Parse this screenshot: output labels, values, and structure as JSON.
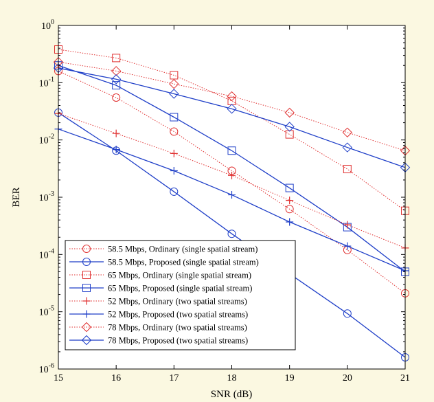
{
  "chart_data": {
    "type": "line",
    "xlabel": "SNR (dB)",
    "ylabel": "BER",
    "xlim": [
      15,
      21
    ],
    "ylim": [
      1e-06,
      1
    ],
    "yscale": "log",
    "grid": false,
    "legend_position": "bottom-left",
    "x_ticks": [
      "15",
      "16",
      "17",
      "18",
      "19",
      "20",
      "21"
    ],
    "y_ticks": [
      {
        "base": "10",
        "exp": "0",
        "value": 1
      },
      {
        "base": "10",
        "exp": "-1",
        "value": 0.1
      },
      {
        "base": "10",
        "exp": "-2",
        "value": 0.01
      },
      {
        "base": "10",
        "exp": "-3",
        "value": 0.001
      },
      {
        "base": "10",
        "exp": "-4",
        "value": 0.0001
      },
      {
        "base": "10",
        "exp": "-5",
        "value": 1e-05
      },
      {
        "base": "10",
        "exp": "-6",
        "value": 1e-06
      }
    ],
    "x": [
      15,
      16,
      17,
      18,
      19,
      20,
      21
    ],
    "series": [
      {
        "name": "58.5 Mbps, Ordinary (single spatial stream)",
        "color": "#e03030",
        "style": "dotted",
        "marker": "circle",
        "values": [
          0.16,
          0.055,
          0.014,
          0.0029,
          0.00062,
          0.00012,
          2.1e-05
        ]
      },
      {
        "name": "58.5 Mbps, Proposed (single spatial stream)",
        "color": "#1f3fc8",
        "style": "solid",
        "marker": "circle",
        "values": [
          0.03,
          0.0065,
          0.00125,
          0.00023,
          4.6e-05,
          9.3e-06,
          1.6e-06
        ]
      },
      {
        "name": "65 Mbps, Ordinary (single spatial stream)",
        "color": "#e03030",
        "style": "dotted",
        "marker": "square",
        "values": [
          0.38,
          0.27,
          0.135,
          0.048,
          0.0125,
          0.0031,
          0.00058
        ]
      },
      {
        "name": "65 Mbps, Proposed (single spatial stream)",
        "color": "#1f3fc8",
        "style": "solid",
        "marker": "square",
        "values": [
          0.2,
          0.09,
          0.025,
          0.0065,
          0.00145,
          0.0003,
          5e-05
        ]
      },
      {
        "name": "52 Mbps, Ordinary (two spatial streams)",
        "color": "#e03030",
        "style": "dotted",
        "marker": "plus",
        "values": [
          0.029,
          0.013,
          0.0058,
          0.0024,
          0.00088,
          0.00033,
          0.00013
        ]
      },
      {
        "name": "52 Mbps, Proposed (two spatial streams)",
        "color": "#1f3fc8",
        "style": "solid",
        "marker": "plus",
        "values": [
          0.0155,
          0.0068,
          0.0029,
          0.0011,
          0.00037,
          0.00014,
          5.2e-05
        ]
      },
      {
        "name": "78 Mbps, Ordinary (two spatial streams)",
        "color": "#e03030",
        "style": "dotted",
        "marker": "diamond",
        "values": [
          0.23,
          0.16,
          0.095,
          0.058,
          0.03,
          0.0135,
          0.0065
        ]
      },
      {
        "name": "78 Mbps, Proposed (two spatial streams)",
        "color": "#1f3fc8",
        "style": "solid",
        "marker": "diamond",
        "values": [
          0.18,
          0.115,
          0.064,
          0.035,
          0.017,
          0.0074,
          0.0033
        ]
      }
    ]
  }
}
